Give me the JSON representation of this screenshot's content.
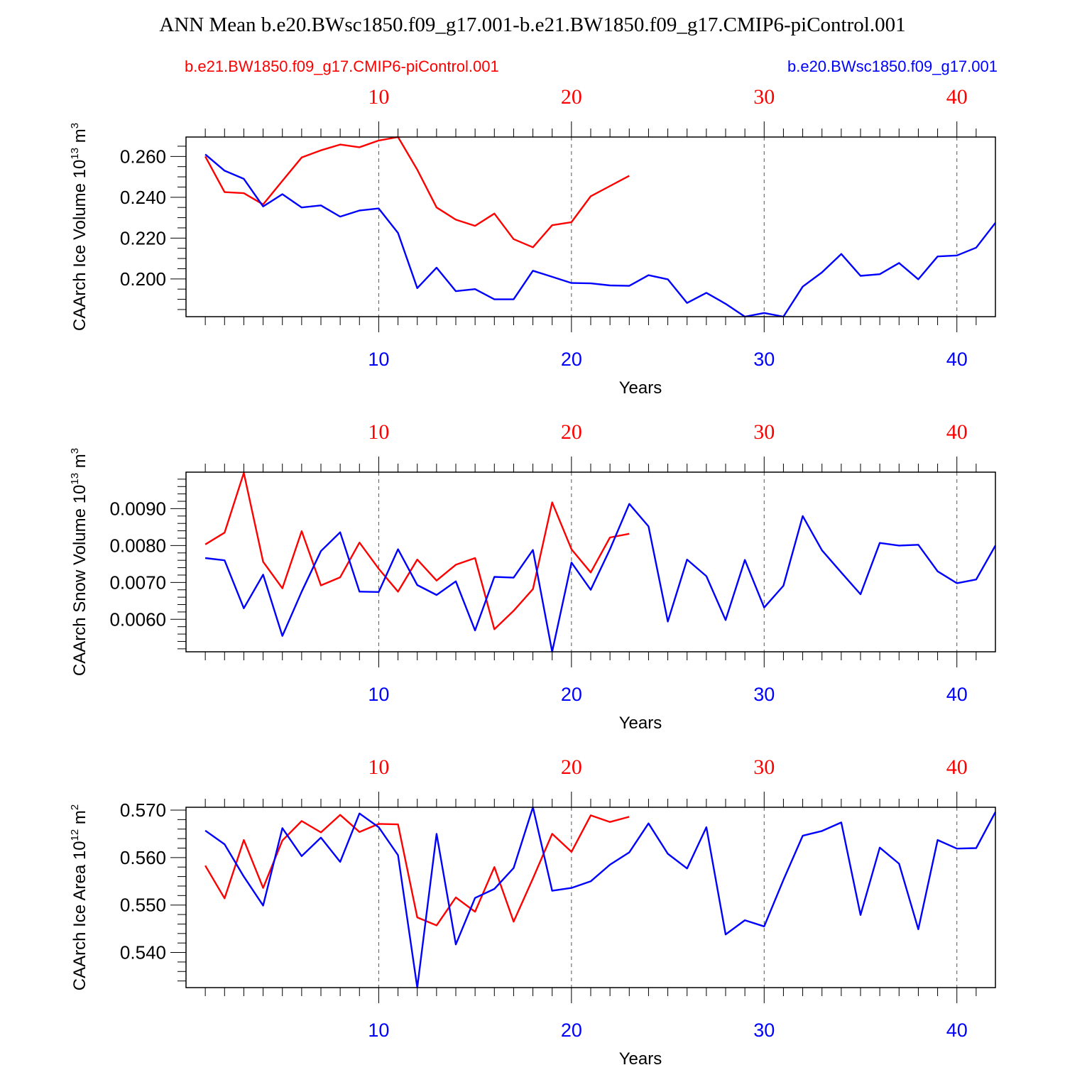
{
  "title": "ANN Mean b.e20.BWsc1850.f09_g17.001-b.e21.BW1850.f09_g17.CMIP6-piControl.001",
  "legend": {
    "left": {
      "label": "b.e21.BW1850.f09_g17.CMIP6-piControl.001",
      "color": "#ff0000"
    },
    "right": {
      "label": "b.e20.BWsc1850.f09_g17.001",
      "color": "#0000ff"
    }
  },
  "colors": {
    "red_series": "#ff0000",
    "blue_series": "#0000ff",
    "axis": "#000000",
    "grid": "#555555"
  },
  "chart_data": [
    {
      "type": "line",
      "ylabel": {
        "text": "CAArch Ice Volume 10",
        "sup1": "13",
        "unit": " m",
        "sup2": "3"
      },
      "xlabel": "Years",
      "xlim": [
        0,
        42
      ],
      "ylim": [
        0.1815,
        0.2695
      ],
      "yticks": [
        0.2,
        0.22,
        0.24,
        0.26
      ],
      "ytick_labels": [
        "0.200",
        "0.220",
        "0.240",
        "0.260"
      ],
      "yminor_step": 0.005,
      "xticks": [
        10,
        20,
        30,
        40
      ],
      "xtick_labels_top": [
        "10",
        "20",
        "30",
        "40"
      ],
      "xtick_labels_bottom": [
        "10",
        "20",
        "30",
        "40"
      ],
      "grid": "vertical dashed at major x ticks",
      "series": [
        {
          "color": "red",
          "x": [
            1,
            2,
            3,
            4,
            5,
            6,
            7,
            8,
            9,
            10,
            11,
            12,
            13,
            14,
            15,
            16,
            17,
            18,
            19,
            20,
            21,
            22,
            23
          ],
          "y": [
            0.26,
            0.2425,
            0.242,
            0.2365,
            0.248,
            0.2595,
            0.263,
            0.2658,
            0.2645,
            0.2678,
            0.2695,
            0.2535,
            0.235,
            0.229,
            0.226,
            0.232,
            0.2195,
            0.2155,
            0.2263,
            0.2278,
            0.2405,
            0.2455,
            0.2505
          ]
        },
        {
          "color": "blue",
          "x": [
            1,
            2,
            3,
            4,
            5,
            6,
            7,
            8,
            9,
            10,
            11,
            12,
            13,
            14,
            15,
            16,
            17,
            18,
            19,
            20,
            21,
            22,
            23,
            24,
            25,
            26,
            27,
            28,
            29,
            30,
            31,
            32,
            33,
            34,
            35,
            36,
            37,
            38,
            39,
            40,
            41,
            42
          ],
          "y": [
            0.261,
            0.253,
            0.249,
            0.2355,
            0.2415,
            0.235,
            0.236,
            0.2305,
            0.2335,
            0.2345,
            0.2225,
            0.1955,
            0.2055,
            0.194,
            0.195,
            0.19,
            0.19,
            0.204,
            0.201,
            0.198,
            0.1978,
            0.1968,
            0.1966,
            0.2018,
            0.1998,
            0.1882,
            0.1932,
            0.1878,
            0.1815,
            0.1833,
            0.1815,
            0.1962,
            0.2032,
            0.2122,
            0.2015,
            0.2023,
            0.2078,
            0.1998,
            0.211,
            0.2115,
            0.2153,
            0.2275
          ]
        }
      ]
    },
    {
      "type": "line",
      "ylabel": {
        "text": "CAArch Snow Volume 10",
        "sup1": "13",
        "unit": " m",
        "sup2": "3"
      },
      "xlabel": "Years",
      "xlim": [
        0,
        42
      ],
      "ylim": [
        0.00512,
        0.00999
      ],
      "yticks": [
        0.006,
        0.007,
        0.008,
        0.009
      ],
      "ytick_labels": [
        "0.0060",
        "0.0070",
        "0.0080",
        "0.0090"
      ],
      "yminor_step": 0.0002,
      "xticks": [
        10,
        20,
        30,
        40
      ],
      "xtick_labels_top": [
        "10",
        "20",
        "30",
        "40"
      ],
      "xtick_labels_bottom": [
        "10",
        "20",
        "30",
        "40"
      ],
      "grid": "vertical dashed at major x ticks",
      "series": [
        {
          "color": "red",
          "x": [
            1,
            2,
            3,
            4,
            5,
            6,
            7,
            8,
            9,
            10,
            11,
            12,
            13,
            14,
            15,
            16,
            17,
            18,
            19,
            20,
            21,
            22,
            23
          ],
          "y": [
            0.00803,
            0.00835,
            0.00997,
            0.00756,
            0.00684,
            0.00839,
            0.00692,
            0.00714,
            0.00808,
            0.00737,
            0.00675,
            0.00762,
            0.00705,
            0.00748,
            0.00766,
            0.00573,
            0.00623,
            0.00682,
            0.00917,
            0.0079,
            0.00727,
            0.00822,
            0.00832
          ]
        },
        {
          "color": "blue",
          "x": [
            1,
            2,
            3,
            4,
            5,
            6,
            7,
            8,
            9,
            10,
            11,
            12,
            13,
            14,
            15,
            16,
            17,
            18,
            19,
            20,
            21,
            22,
            23,
            24,
            25,
            26,
            27,
            28,
            29,
            30,
            31,
            32,
            33,
            34,
            35,
            36,
            37,
            38,
            39,
            40,
            41,
            42
          ],
          "y": [
            0.00766,
            0.0076,
            0.0063,
            0.00721,
            0.00555,
            0.00675,
            0.00785,
            0.00836,
            0.00675,
            0.00674,
            0.0079,
            0.00693,
            0.00666,
            0.00703,
            0.0057,
            0.00715,
            0.00713,
            0.00788,
            0.00512,
            0.00754,
            0.0068,
            0.0079,
            0.00913,
            0.00852,
            0.00594,
            0.00762,
            0.00717,
            0.00598,
            0.00761,
            0.00632,
            0.00691,
            0.0088,
            0.00787,
            0.00727,
            0.00668,
            0.00807,
            0.008,
            0.00802,
            0.0073,
            0.00698,
            0.00708,
            0.008
          ]
        }
      ]
    },
    {
      "type": "line",
      "ylabel": {
        "text": "CAArch Ice Area 10",
        "sup1": "12",
        "unit": " m",
        "sup2": "2"
      },
      "xlabel": "Years",
      "xlim": [
        0,
        42
      ],
      "ylim": [
        0.5326,
        0.5706
      ],
      "yticks": [
        0.54,
        0.55,
        0.56,
        0.57
      ],
      "ytick_labels": [
        "0.540",
        "0.550",
        "0.560",
        "0.570"
      ],
      "yminor_step": 0.002,
      "xticks": [
        10,
        20,
        30,
        40
      ],
      "xtick_labels_top": [
        "10",
        "20",
        "30",
        "40"
      ],
      "xtick_labels_bottom": [
        "10",
        "20",
        "30",
        "40"
      ],
      "grid": "vertical dashed at major x ticks",
      "series": [
        {
          "color": "red",
          "x": [
            1,
            2,
            3,
            4,
            5,
            6,
            7,
            8,
            9,
            10,
            11,
            12,
            13,
            14,
            15,
            16,
            17,
            18,
            19,
            20,
            21,
            22,
            23
          ],
          "y": [
            0.5583,
            0.5514,
            0.5637,
            0.5536,
            0.5636,
            0.5677,
            0.5653,
            0.569,
            0.5654,
            0.5671,
            0.567,
            0.5474,
            0.5457,
            0.5516,
            0.5486,
            0.558,
            0.5465,
            0.5556,
            0.565,
            0.5612,
            0.5689,
            0.5675,
            0.5686
          ]
        },
        {
          "color": "blue",
          "x": [
            1,
            2,
            3,
            4,
            5,
            6,
            7,
            8,
            9,
            10,
            11,
            12,
            13,
            14,
            15,
            16,
            17,
            18,
            19,
            20,
            21,
            22,
            23,
            24,
            25,
            26,
            27,
            28,
            29,
            30,
            31,
            32,
            33,
            34,
            35,
            36,
            37,
            38,
            39,
            40,
            41,
            42
          ],
          "y": [
            0.5657,
            0.5628,
            0.556,
            0.5499,
            0.5662,
            0.5603,
            0.5642,
            0.5591,
            0.5693,
            0.5664,
            0.5605,
            0.5326,
            0.565,
            0.5417,
            0.5515,
            0.5534,
            0.5578,
            0.5706,
            0.553,
            0.5536,
            0.555,
            0.5585,
            0.5611,
            0.5672,
            0.5608,
            0.5577,
            0.5664,
            0.5438,
            0.5468,
            0.5455,
            0.5553,
            0.5646,
            0.5656,
            0.5674,
            0.5479,
            0.5621,
            0.5587,
            0.5449,
            0.5637,
            0.5619,
            0.562,
            0.5696
          ]
        }
      ]
    }
  ]
}
